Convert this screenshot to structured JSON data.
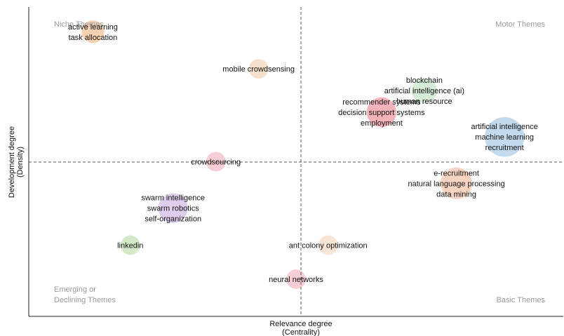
{
  "chart_data": {
    "type": "scatter",
    "title": "",
    "xlabel": "Relevance degree",
    "xlabel_sub": "(Centrality)",
    "ylabel": "Development degree",
    "ylabel_sub": "(Density)",
    "quadrants": {
      "top_left": "Niche Themes",
      "top_right": "Motor Themes",
      "bottom_left": [
        "Emerging or",
        "Declining Themes"
      ],
      "bottom_right": "Basic Themes"
    },
    "clusters": [
      {
        "labels": [
          "active learning",
          "task allocation"
        ],
        "x": 0.12,
        "y": 0.92,
        "size": 3,
        "color": "#f6c9a3"
      },
      {
        "labels": [
          "mobile crowdsensing"
        ],
        "x": 0.43,
        "y": 0.8,
        "size": 2,
        "color": "#f3d9c4"
      },
      {
        "labels": [
          "blockchain",
          "artificial intelligence (ai)",
          "human resource"
        ],
        "x": 0.74,
        "y": 0.73,
        "size": 4,
        "color": "#cfe9cf"
      },
      {
        "labels": [
          "recommender systems",
          "decision support systems",
          "employment"
        ],
        "x": 0.66,
        "y": 0.66,
        "size": 6,
        "color": "#f2a6ae"
      },
      {
        "labels": [
          "artificial intelligence",
          "machine learning",
          "recruitment"
        ],
        "x": 0.89,
        "y": 0.58,
        "size": 12,
        "color": "#b9d3ea"
      },
      {
        "labels": [
          "crowdsourcing"
        ],
        "x": 0.35,
        "y": 0.5,
        "size": 2,
        "color": "#f6c6cf"
      },
      {
        "labels": [
          "e-recruitment",
          "natural language processing",
          "data mining"
        ],
        "x": 0.8,
        "y": 0.43,
        "size": 7,
        "color": "#f6cdb6"
      },
      {
        "labels": [
          "swarm intelligence",
          "swarm robotics",
          "self-organization"
        ],
        "x": 0.27,
        "y": 0.35,
        "size": 6,
        "color": "#d8c4e8"
      },
      {
        "labels": [
          "linkedin"
        ],
        "x": 0.19,
        "y": 0.23,
        "size": 2,
        "color": "#cfe6c0"
      },
      {
        "labels": [
          "ant colony optimization"
        ],
        "x": 0.56,
        "y": 0.23,
        "size": 2,
        "color": "#f6e2cf"
      },
      {
        "labels": [
          "neural networks"
        ],
        "x": 0.5,
        "y": 0.12,
        "size": 2,
        "color": "#f6c6cf"
      }
    ]
  }
}
